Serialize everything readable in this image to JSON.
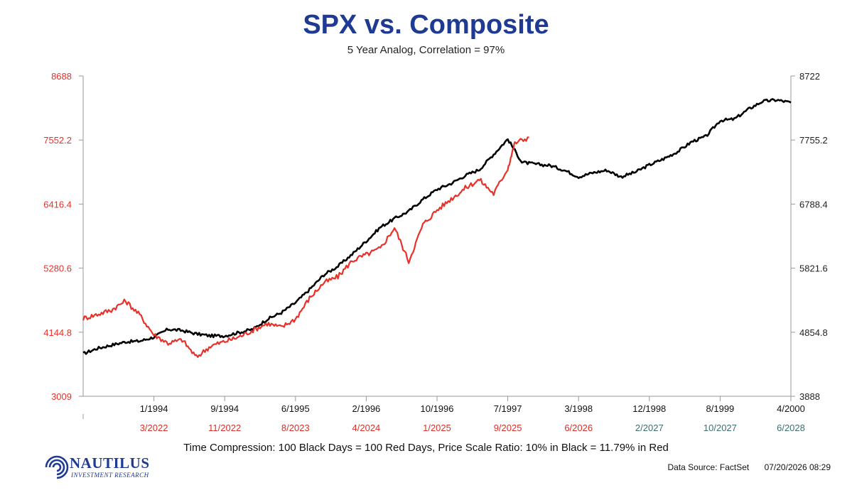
{
  "chart_data": {
    "type": "line",
    "title": "SPX vs. Composite",
    "subtitle": "5 Year Analog, Correlation = 97%",
    "left_axis": {
      "ylim": [
        3009,
        8688
      ],
      "ticks": [
        "3009",
        "4144.8",
        "5280.6",
        "6416.4",
        "7552.2",
        "8688"
      ],
      "color": "#e8312a"
    },
    "right_axis": {
      "ylim": [
        3888,
        8722
      ],
      "ticks": [
        "3888",
        "4854.8",
        "5821.6",
        "6788.4",
        "7755.2",
        "8722"
      ],
      "color": "#222222"
    },
    "x_ticks_black": [
      "1/1994",
      "9/1994",
      "6/1995",
      "2/1996",
      "10/1996",
      "7/1997",
      "3/1998",
      "12/1998",
      "8/1999",
      "4/2000"
    ],
    "x_ticks_red": [
      "3/2022",
      "11/2022",
      "8/2023",
      "4/2024",
      "1/2025",
      "9/2025",
      "6/2026",
      "2/2027",
      "10/2027",
      "6/2028"
    ],
    "x_ticks_red_colors": [
      "#d9302a",
      "#d9302a",
      "#d9302a",
      "#d9302a",
      "#d9302a",
      "#d9302a",
      "#d9302a",
      "#3c6e6e",
      "#3c6e6e",
      "#3c6e6e"
    ],
    "x_range": [
      0,
      100
    ],
    "series": [
      {
        "color": "#000000",
        "axis": "right",
        "x": [
          0,
          2,
          4,
          6,
          8,
          10,
          12,
          14,
          16,
          18,
          20,
          22,
          24,
          26,
          28,
          30,
          32,
          34,
          36,
          38,
          40,
          42,
          44,
          46,
          48,
          50,
          52,
          54,
          56,
          58,
          60,
          62,
          64,
          66,
          68,
          70,
          72,
          74,
          76,
          78,
          80,
          82,
          84,
          86,
          88,
          90,
          92,
          94,
          96,
          98,
          100
        ],
        "y": [
          4530,
          4610,
          4660,
          4710,
          4720,
          4780,
          4900,
          4880,
          4830,
          4800,
          4800,
          4850,
          4900,
          5050,
          5150,
          5300,
          5500,
          5720,
          5850,
          6030,
          6230,
          6440,
          6570,
          6680,
          6860,
          7010,
          7100,
          7220,
          7310,
          7540,
          7770,
          7420,
          7390,
          7370,
          7300,
          7200,
          7260,
          7300,
          7200,
          7270,
          7380,
          7470,
          7580,
          7730,
          7810,
          8050,
          8070,
          8220,
          8340,
          8360,
          8320
        ]
      },
      {
        "color": "#e8312a",
        "axis": "left",
        "x": [
          0,
          2,
          4,
          6,
          8,
          10,
          12,
          14,
          16,
          18,
          20,
          22,
          24,
          26,
          28,
          30,
          32,
          34,
          36,
          38,
          40,
          42,
          44,
          46,
          48,
          50,
          52,
          54,
          56,
          58,
          60,
          61,
          63
        ],
        "y": [
          4390,
          4460,
          4540,
          4700,
          4450,
          4100,
          3950,
          4010,
          3700,
          3900,
          3980,
          4060,
          4180,
          4300,
          4230,
          4380,
          4750,
          5020,
          5130,
          5410,
          5520,
          5630,
          6000,
          5400,
          6050,
          6310,
          6510,
          6700,
          6850,
          6600,
          7050,
          7500,
          7600
        ]
      }
    ],
    "annotation": "Time Compression: 100 Black Days = 100 Red Days,  Price Scale Ratio: 10% in Black = 11.79% in Red",
    "source_label": "Data Source: FactSet",
    "timestamp": "07/20/2026 08:29"
  },
  "logo": {
    "name": "NAUTILUS",
    "tagline": "INVESTMENT RESEARCH"
  }
}
